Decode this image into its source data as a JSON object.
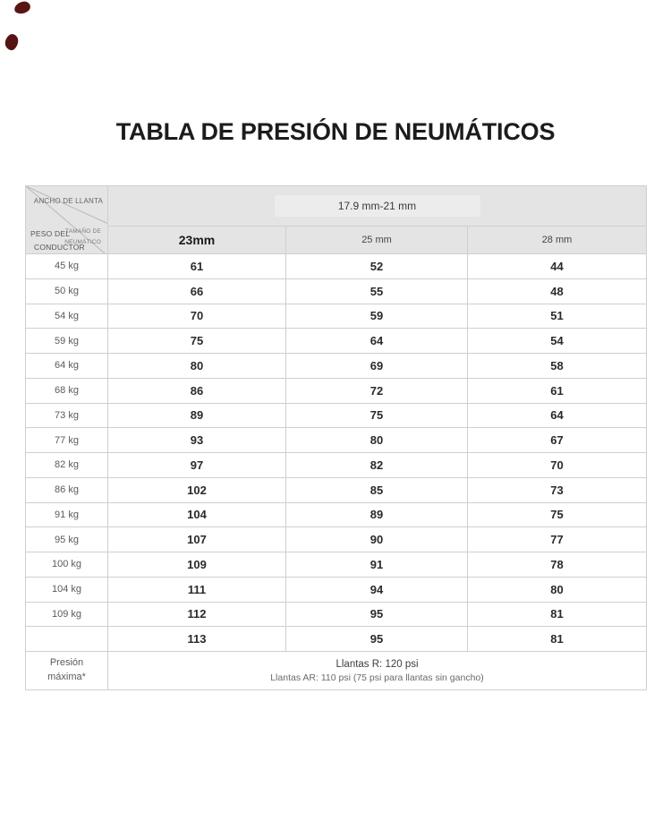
{
  "page": {
    "title": "TABLA DE PRESIÓN DE NEUMÁTICOS"
  },
  "table": {
    "corner": {
      "rim_axis_label": "ANCHO DE LLANTA",
      "tire_size_label_line1": "TAMAÑO DE",
      "tire_size_label_line2": "NEUMÁTICO",
      "rider_weight_label_line1": "PESO DEL",
      "rider_weight_label_line2": "CONDUCTOR"
    },
    "rim_width_band": "17.9 mm-21 mm",
    "tire_columns": [
      "23mm",
      "25 mm",
      "28 mm"
    ],
    "rows": [
      {
        "weight": "45 kg",
        "values": [
          "61",
          "52",
          "44"
        ]
      },
      {
        "weight": "50 kg",
        "values": [
          "66",
          "55",
          "48"
        ]
      },
      {
        "weight": "54 kg",
        "values": [
          "70",
          "59",
          "51"
        ]
      },
      {
        "weight": "59 kg",
        "values": [
          "75",
          "64",
          "54"
        ]
      },
      {
        "weight": "64 kg",
        "values": [
          "80",
          "69",
          "58"
        ]
      },
      {
        "weight": "68 kg",
        "values": [
          "86",
          "72",
          "61"
        ]
      },
      {
        "weight": "73 kg",
        "values": [
          "89",
          "75",
          "64"
        ]
      },
      {
        "weight": "77 kg",
        "values": [
          "93",
          "80",
          "67"
        ]
      },
      {
        "weight": "82 kg",
        "values": [
          "97",
          "82",
          "70"
        ]
      },
      {
        "weight": "86 kg",
        "values": [
          "102",
          "85",
          "73"
        ]
      },
      {
        "weight": "91 kg",
        "values": [
          "104",
          "89",
          "75"
        ]
      },
      {
        "weight": "95 kg",
        "values": [
          "107",
          "90",
          "77"
        ]
      },
      {
        "weight": "100 kg",
        "values": [
          "109",
          "91",
          "78"
        ]
      },
      {
        "weight": "104 kg",
        "values": [
          "111",
          "94",
          "80"
        ]
      },
      {
        "weight": "109 kg",
        "values": [
          "112",
          "95",
          "81"
        ]
      },
      {
        "weight": "",
        "values": [
          "113",
          "95",
          "81"
        ]
      }
    ],
    "footer": {
      "label_line1": "Presión",
      "label_line2": "máxima*",
      "note_line1": "Llantas R: 120 psi",
      "note_line2": "Llantas AR: 110 psi (75 psi para llantas sin gancho)"
    }
  },
  "colors": {
    "header_fill": "#e4e4e4",
    "grid_border": "#cfcfcf",
    "title_text": "#1c1c1c",
    "value_text": "#2a2a2a",
    "label_text": "#5a5a5a",
    "corner_mark": "#5a1414"
  },
  "chart_data": {
    "type": "table",
    "title": "TABLA DE PRESIÓN DE NEUMÁTICOS",
    "rim_width_range": "17.9 mm-21 mm",
    "columns": [
      "PESO DEL CONDUCTOR",
      "23mm",
      "25 mm",
      "28 mm"
    ],
    "rows": [
      [
        "45 kg",
        61,
        52,
        44
      ],
      [
        "50 kg",
        66,
        55,
        48
      ],
      [
        "54 kg",
        70,
        59,
        51
      ],
      [
        "59 kg",
        75,
        64,
        54
      ],
      [
        "64 kg",
        80,
        69,
        58
      ],
      [
        "68 kg",
        86,
        72,
        61
      ],
      [
        "73 kg",
        89,
        75,
        64
      ],
      [
        "77 kg",
        93,
        80,
        67
      ],
      [
        "82 kg",
        97,
        82,
        70
      ],
      [
        "86 kg",
        102,
        85,
        73
      ],
      [
        "91 kg",
        104,
        89,
        75
      ],
      [
        "95 kg",
        107,
        90,
        77
      ],
      [
        "100 kg",
        109,
        91,
        78
      ],
      [
        "104 kg",
        111,
        94,
        80
      ],
      [
        "109 kg",
        112,
        95,
        81
      ],
      [
        "",
        113,
        95,
        81
      ]
    ],
    "footnotes": [
      "Presión máxima*",
      "Llantas R: 120 psi",
      "Llantas AR: 110 psi (75 psi para llantas sin gancho)"
    ]
  }
}
